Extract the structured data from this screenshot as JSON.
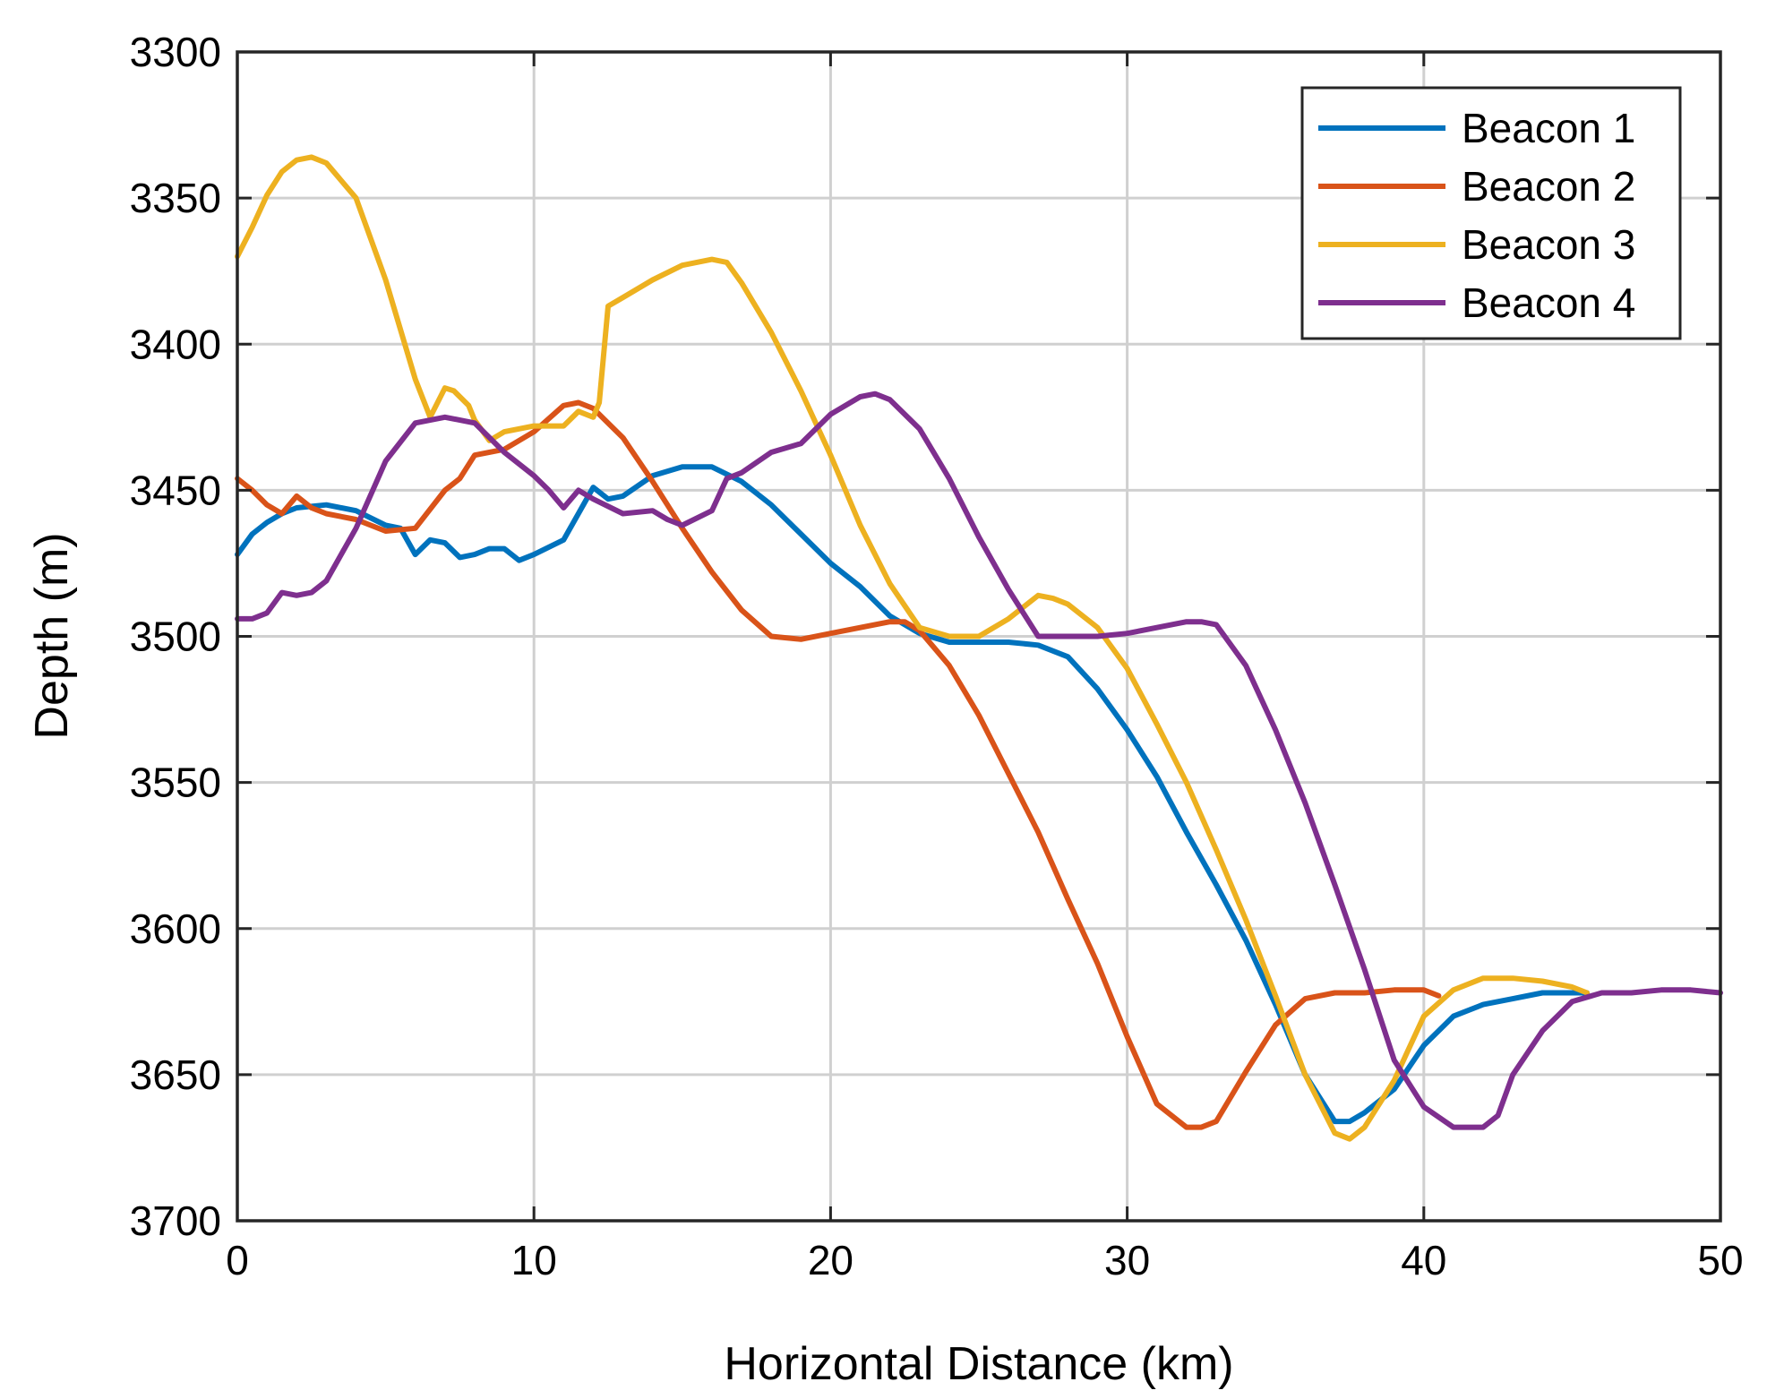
{
  "chart_data": {
    "type": "line",
    "title": "",
    "xlabel": "Horizontal Distance (km)",
    "ylabel": "Depth (m)",
    "xlim": [
      0,
      50
    ],
    "ylim": [
      3300,
      3700
    ],
    "y_reversed": true,
    "grid": true,
    "legend_position": "top-right",
    "x_ticks": [
      0,
      10,
      20,
      30,
      40,
      50
    ],
    "y_ticks": [
      3300,
      3350,
      3400,
      3450,
      3500,
      3550,
      3600,
      3650,
      3700
    ],
    "x_tick_labels": [
      "0",
      "10",
      "20",
      "30",
      "40",
      "50"
    ],
    "y_tick_labels": [
      "3300",
      "3350",
      "3400",
      "3450",
      "3500",
      "3550",
      "3600",
      "3650",
      "3700"
    ],
    "series": [
      {
        "name": "Beacon 1",
        "color": "#0072BD",
        "x": [
          0,
          0.5,
          1,
          1.5,
          2,
          3,
          4,
          5,
          5.5,
          6,
          6.5,
          7,
          7.5,
          8,
          8.5,
          9,
          9.5,
          10,
          11,
          12,
          12.5,
          13,
          14,
          15,
          16,
          17,
          18,
          19,
          20,
          21,
          22,
          23,
          24,
          25,
          26,
          27,
          28,
          29,
          30,
          31,
          32,
          33,
          34,
          35,
          36,
          37,
          37.5,
          38,
          39,
          40,
          41,
          42,
          43,
          44,
          45,
          45.5
        ],
        "y": [
          3472,
          3465,
          3461,
          3458,
          3456,
          3455,
          3457,
          3462,
          3463,
          3472,
          3467,
          3468,
          3473,
          3472,
          3470,
          3470,
          3474,
          3472,
          3467,
          3449,
          3453,
          3452,
          3445,
          3442,
          3442,
          3447,
          3455,
          3465,
          3475,
          3483,
          3493,
          3499,
          3502,
          3502,
          3502,
          3503,
          3507,
          3518,
          3532,
          3548,
          3567,
          3585,
          3604,
          3626,
          3650,
          3666,
          3666,
          3663,
          3655,
          3640,
          3630,
          3626,
          3624,
          3622,
          3622,
          3622
        ]
      },
      {
        "name": "Beacon 2",
        "color": "#D95319",
        "x": [
          0,
          0.5,
          1,
          1.5,
          2,
          2.5,
          3,
          4,
          5,
          6,
          7,
          7.5,
          8,
          9,
          10,
          11,
          11.5,
          12,
          13,
          14,
          15,
          16,
          17,
          18,
          19,
          20,
          21,
          22,
          22.5,
          23,
          24,
          25,
          26,
          27,
          28,
          29,
          30,
          31,
          32,
          32.5,
          33,
          34,
          35,
          36,
          37,
          38,
          39,
          40,
          40.5
        ],
        "y": [
          3446,
          3450,
          3455,
          3458,
          3452,
          3456,
          3458,
          3460,
          3464,
          3463,
          3450,
          3446,
          3438,
          3436,
          3430,
          3421,
          3420,
          3422,
          3432,
          3447,
          3463,
          3478,
          3491,
          3500,
          3501,
          3499,
          3497,
          3495,
          3495,
          3498,
          3510,
          3527,
          3547,
          3567,
          3590,
          3612,
          3637,
          3660,
          3668,
          3668,
          3666,
          3649,
          3633,
          3624,
          3622,
          3622,
          3621,
          3621,
          3623
        ]
      },
      {
        "name": "Beacon 3",
        "color": "#EDB120",
        "x": [
          0,
          0.5,
          1,
          1.5,
          2,
          2.5,
          3,
          4,
          5,
          6,
          6.5,
          7,
          7.3,
          7.8,
          8,
          8.5,
          9,
          10,
          11,
          11.5,
          12,
          12.2,
          12.5,
          13,
          14,
          15,
          16,
          16.5,
          17,
          18,
          19,
          20,
          21,
          22,
          23,
          24,
          25,
          26,
          27,
          27.5,
          28,
          29,
          30,
          31,
          32,
          33,
          34,
          35,
          36,
          37,
          37.5,
          38,
          39,
          40,
          41,
          42,
          43,
          44,
          45,
          45.5
        ],
        "y": [
          3370,
          3360,
          3349,
          3341,
          3337,
          3336,
          3338,
          3350,
          3378,
          3412,
          3425,
          3415,
          3416,
          3421,
          3426,
          3433,
          3430,
          3428,
          3428,
          3423,
          3425,
          3420,
          3387,
          3384,
          3378,
          3373,
          3371,
          3372,
          3379,
          3396,
          3416,
          3438,
          3462,
          3482,
          3497,
          3500,
          3500,
          3494,
          3486,
          3487,
          3489,
          3497,
          3511,
          3530,
          3550,
          3573,
          3597,
          3623,
          3650,
          3670,
          3672,
          3668,
          3652,
          3630,
          3621,
          3617,
          3617,
          3618,
          3620,
          3622
        ]
      },
      {
        "name": "Beacon 4",
        "color": "#7E2F8E",
        "x": [
          0,
          0.5,
          1,
          1.5,
          2,
          2.5,
          3,
          4,
          5,
          6,
          7,
          8,
          9,
          10,
          10.5,
          11,
          11.5,
          12,
          13,
          14,
          14.5,
          15,
          16,
          16.5,
          17,
          18,
          19,
          20,
          21,
          21.5,
          22,
          23,
          24,
          25,
          26,
          27,
          28,
          29,
          30,
          31,
          32,
          32.5,
          33,
          34,
          35,
          36,
          37,
          38,
          39,
          40,
          41,
          42,
          42.5,
          43,
          44,
          45,
          46,
          47,
          48,
          49,
          50
        ],
        "y": [
          3494,
          3494,
          3492,
          3485,
          3486,
          3485,
          3481,
          3463,
          3440,
          3427,
          3425,
          3427,
          3437,
          3445,
          3450,
          3456,
          3450,
          3453,
          3458,
          3457,
          3460,
          3462,
          3457,
          3446,
          3444,
          3437,
          3434,
          3424,
          3418,
          3417,
          3419,
          3429,
          3446,
          3466,
          3484,
          3500,
          3500,
          3500,
          3499,
          3497,
          3495,
          3495,
          3496,
          3510,
          3532,
          3557,
          3585,
          3614,
          3645,
          3661,
          3668,
          3668,
          3664,
          3650,
          3635,
          3625,
          3622,
          3622,
          3621,
          3621,
          3622
        ]
      }
    ]
  }
}
